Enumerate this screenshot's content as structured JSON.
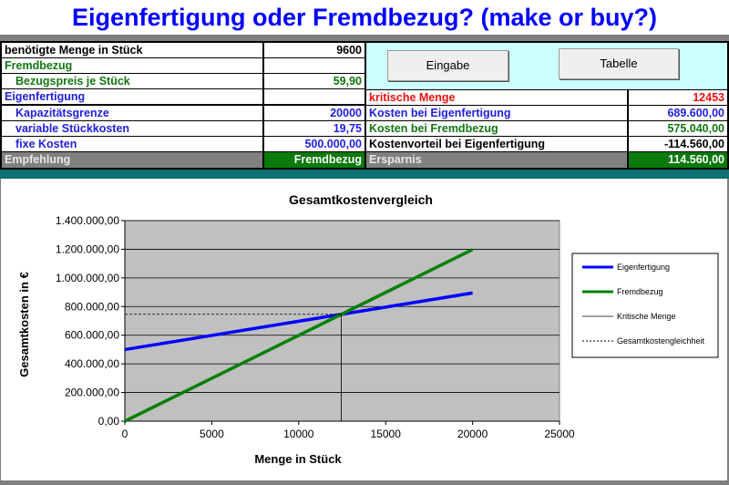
{
  "title": "Eigenfertigung oder Fremdbezug? (make or buy?)",
  "left": {
    "menge_label": "benötigte Menge in Stück",
    "menge_value": "9600",
    "fremdbezug_header": "Fremdbezug",
    "bezugspreis_label": "Bezugspreis je Stück",
    "bezugspreis_value": "59,90",
    "eigen_header": "Eigenfertigung",
    "kapazitaet_label": "Kapazitätsgrenze",
    "kapazitaet_value": "20000",
    "var_label": "variable Stückkosten",
    "var_value": "19,75",
    "fix_label": "fixe Kosten",
    "fix_value": "500.000,00",
    "empfehlung_label": "Empfehlung",
    "empfehlung_value": "Fremdbezug"
  },
  "buttons": {
    "eingabe": "Eingabe",
    "tabelle": "Tabelle"
  },
  "right": {
    "krit_label": "kritische Menge",
    "krit_value": "12453",
    "k_eigen_label": "Kosten bei Eigenfertigung",
    "k_eigen_value": "689.600,00",
    "k_fremd_label": "Kosten bei Fremdbezug",
    "k_fremd_value": "575.040,00",
    "vorteil_label": "Kostenvorteil bei Eigenfertigung",
    "vorteil_value": "-114.560,00",
    "ersparnis_label": "Ersparnis",
    "ersparnis_value": "114.560,00"
  },
  "colors": {
    "eigen": "#0000ff",
    "fremd": "#008000",
    "green_cell": "#0a7a0a",
    "plot_bg": "#c0c0c0"
  },
  "chart_data": {
    "type": "line",
    "title": "Gesamtkostenvergleich",
    "xlabel": "Menge in Stück",
    "ylabel": "Gesamtkosten in €",
    "xlim": [
      0,
      25000
    ],
    "ylim": [
      0,
      1400000
    ],
    "xticks": [
      "0",
      "5000",
      "10000",
      "15000",
      "20000",
      "25000"
    ],
    "yticks": [
      "0,00",
      "200.000,00",
      "400.000,00",
      "600.000,00",
      "800.000,00",
      "1.000.000,00",
      "1.200.000,00",
      "1.400.000,00"
    ],
    "grid": true,
    "legend_position": "right",
    "series": [
      {
        "name": "Eigenfertigung",
        "x": [
          0,
          20000
        ],
        "y": [
          500000,
          895000
        ],
        "color": "#0000ff"
      },
      {
        "name": "Fremdbezug",
        "x": [
          0,
          20000
        ],
        "y": [
          0,
          1198000
        ],
        "color": "#008000"
      },
      {
        "name": "Kritische Menge",
        "x": [
          12453,
          12453
        ],
        "y": [
          0,
          745947
        ],
        "color": "#000000"
      },
      {
        "name": "Gesamtkostengleichheit",
        "x": [
          0,
          12453
        ],
        "y": [
          745947,
          745947
        ],
        "color": "#000000",
        "dashed": true
      }
    ]
  }
}
